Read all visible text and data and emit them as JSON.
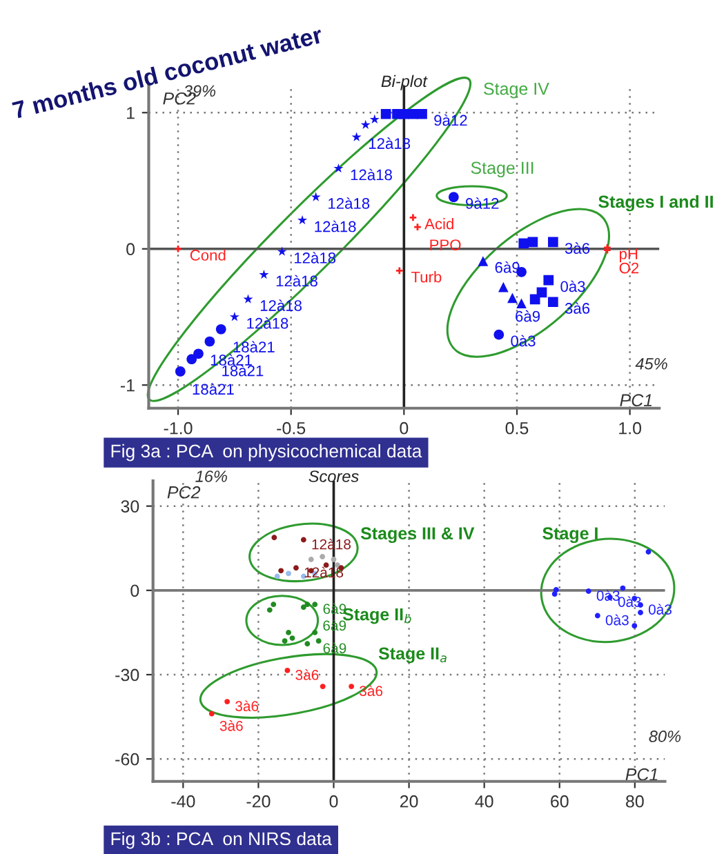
{
  "chart_data": [
    {
      "type": "scatter",
      "title": "7 months old coconut water",
      "subtitle": "Bi-plot",
      "xlabel": "PC1",
      "ylabel": "PC2",
      "xlim": [
        -1.13,
        1.13
      ],
      "ylim": [
        -1.17,
        1.2
      ],
      "xticks": [
        {
          "value": -1,
          "label": "-1.0"
        },
        -0.5,
        0,
        0.5,
        {
          "value": 1,
          "label": "1.0"
        }
      ],
      "yticks": [
        -1,
        0,
        1
      ],
      "grid": true,
      "ref_lines": [
        {
          "axis": "y",
          "value": 0,
          "color": "#555555"
        },
        {
          "axis": "x",
          "value": 0,
          "color": "#222222"
        }
      ],
      "annotations": [
        "39%",
        "45%",
        "Fig 3a : PCA  on physicochemical data",
        "Stage IV",
        "Stage III",
        "Stages I and II"
      ],
      "series": [
        {
          "marker": "star",
          "color": "#1010ee",
          "x": [
            -0.54,
            -0.62,
            -0.69,
            -0.75,
            -0.45,
            -0.39,
            -0.29,
            -0.21,
            -0.17,
            -0.13
          ],
          "values": [
            -0.02,
            -0.19,
            -0.37,
            -0.5,
            0.21,
            0.38,
            0.59,
            0.82,
            0.91,
            0.95
          ],
          "value_labels": [
            "12à18",
            "12à18",
            "12à18",
            "12à18",
            "12à18",
            "12à18",
            "12à18",
            "12à18",
            null,
            null
          ]
        },
        {
          "marker": "circle",
          "color": "#1010ee",
          "x": [
            -0.81,
            -0.86,
            -0.91,
            -0.94,
            -0.99,
            0.22,
            0.52,
            0.42
          ],
          "values": [
            -0.59,
            -0.68,
            -0.77,
            -0.81,
            -0.9,
            0.38,
            -0.17,
            -0.63
          ],
          "value_labels": [
            "18à21",
            "18à21",
            "18à21",
            null,
            "18à21",
            "9à12",
            null,
            "0à3"
          ]
        },
        {
          "marker": "square",
          "color": "#1010ee",
          "x": [
            -0.08,
            -0.03,
            0.0,
            0.04,
            0.08,
            0.53,
            0.57,
            0.66,
            0.64,
            0.61,
            0.58,
            0.66
          ],
          "values": [
            0.99,
            0.99,
            0.99,
            0.99,
            0.99,
            0.04,
            0.05,
            0.05,
            -0.23,
            -0.32,
            -0.37,
            -0.39
          ],
          "value_labels": [
            null,
            null,
            null,
            null,
            "9à12",
            null,
            null,
            "3à6",
            "0à3",
            null,
            null,
            "3à6"
          ]
        },
        {
          "marker": "triangle",
          "color": "#1010ee",
          "x": [
            0.35,
            0.44,
            0.48,
            0.52
          ],
          "values": [
            -0.09,
            -0.28,
            -0.36,
            -0.4
          ],
          "value_labels": [
            "6à9",
            "6à9",
            null,
            null
          ]
        },
        {
          "marker": "cross",
          "color": "#ff2020",
          "x": [
            -1.0,
            0.04,
            0.06,
            -0.02,
            0.9,
            0.9
          ],
          "values": [
            0.0,
            0.23,
            0.16,
            -0.16,
            0.01,
            -0.01
          ],
          "value_labels": [
            "Cond",
            "Acid",
            "PPO",
            "Turb",
            "pH",
            "O2"
          ]
        }
      ]
    },
    {
      "type": "scatter",
      "subtitle": "Scores",
      "xlabel": "PC1",
      "ylabel": "PC2",
      "xlim": [
        -48,
        88
      ],
      "ylim": [
        -68,
        39
      ],
      "xticks": [
        -40,
        -20,
        0,
        20,
        40,
        60,
        80
      ],
      "yticks": [
        -60,
        -30,
        0,
        30
      ],
      "grid": true,
      "ref_lines": [
        {
          "axis": "y",
          "value": 0,
          "color": "#777777"
        },
        {
          "axis": "x",
          "value": 0,
          "color": "#222222"
        }
      ],
      "annotations": [
        "16%",
        "80%",
        "Fig 3b : PCA  on NIRS data",
        "Stages III & IV",
        "Stage I",
        "Stage II$_{b}$",
        "Stage II$_{a}$"
      ],
      "series": [
        {
          "marker": "circle",
          "color": "#99bbee",
          "x": [
            -15,
            -12,
            -8,
            -5
          ],
          "values": [
            5,
            6,
            5,
            6
          ]
        },
        {
          "marker": "circle",
          "color": "#aaaaaa",
          "x": [
            -6,
            -3,
            0,
            1
          ],
          "values": [
            11,
            12,
            11,
            9
          ]
        },
        {
          "marker": "circle",
          "color": "#8b1a1a",
          "x": [
            -15.8,
            -8,
            -14,
            -10,
            -6,
            -2,
            2
          ],
          "values": [
            18.8,
            18,
            7,
            8,
            7,
            9,
            8
          ],
          "value_labels": [
            null,
            "12à18",
            null,
            "12à18",
            null,
            null,
            null
          ]
        },
        {
          "marker": "circle",
          "color": "#228b22",
          "x": [
            -16,
            -17,
            -12,
            -13,
            -11,
            -7,
            -8,
            -5,
            -7,
            -4,
            -5
          ],
          "values": [
            -5,
            -7,
            -15,
            -18,
            -17,
            -5,
            -6,
            -5,
            -19,
            -18,
            -15
          ],
          "value_labels": [
            null,
            null,
            null,
            null,
            null,
            "6à9",
            null,
            null,
            "6à9",
            null,
            "6à9"
          ]
        },
        {
          "marker": "circle",
          "color": "#ff2020",
          "x": [
            -12.3,
            -2.9,
            4.7,
            -28.3,
            -32.4
          ],
          "values": [
            -28.5,
            -34.2,
            -34.2,
            -39.6,
            -43.9
          ],
          "value_labels": [
            "3à6",
            null,
            "3à6",
            "3à6",
            "3à6"
          ]
        },
        {
          "marker": "circle",
          "color": "#2020ff",
          "x": [
            83.6,
            59.1,
            58.7,
            67.7,
            76.8,
            73.4,
            79.9,
            81.5,
            81.5,
            79.9,
            70.1
          ],
          "values": [
            13.7,
            0.2,
            -1.3,
            -0.3,
            0.8,
            -2.5,
            -2.9,
            -5.2,
            -7.9,
            -12.6,
            -9.0
          ],
          "value_labels": [
            null,
            null,
            null,
            "0à3",
            null,
            "0à3",
            null,
            "0à3",
            null,
            null,
            "0à3"
          ]
        }
      ]
    }
  ]
}
